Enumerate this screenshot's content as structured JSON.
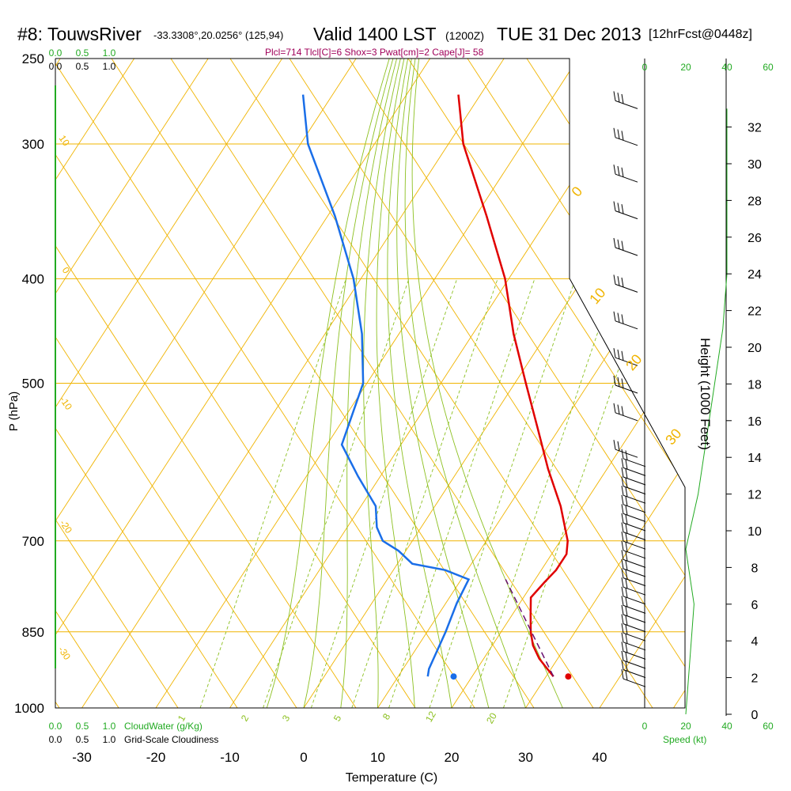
{
  "header": {
    "station": "#8: TouwsRiver",
    "coords": "-33.3308°,20.0256° (125,94)",
    "valid": "Valid 1400 LST",
    "zulu": "(1200Z)",
    "date": "TUE 31 Dec 2013",
    "forecast": "[12hrFcst@0448z]",
    "params": "Plcl=714 Tlcl[C]=6 Shox=3 Pwat[cm]=2 Cape[J]= 58"
  },
  "colors": {
    "isotherm": "#f0b400",
    "dry_adiabat": "#f0b400",
    "moist_adiabat": "#8cc020",
    "mixing_ratio": "#8cc020",
    "temperature": "#e00000",
    "dewpoint": "#1a6ee8",
    "parcel": "#6a1070",
    "cloud": "#22aa22"
  },
  "chart_data": {
    "type": "skew-t",
    "xlabel": "Temperature (C)",
    "ylabel": "P (hPa)",
    "right_axis_label": "Height (1000 Feet)",
    "temperature_ticks": [
      -30,
      -20,
      -10,
      0,
      10,
      20,
      30,
      40
    ],
    "pressure_ticks": [
      250,
      300,
      400,
      500,
      700,
      850,
      1000
    ],
    "height_ticks": [
      0,
      2,
      4,
      6,
      8,
      10,
      12,
      14,
      16,
      18,
      20,
      22,
      24,
      26,
      28,
      30,
      32
    ],
    "speed_ticks": [
      0,
      20,
      40,
      60
    ],
    "speed_label": "Speed (kt)",
    "cloudwater_ticks": [
      "0.0",
      "0.5",
      "1.0"
    ],
    "cloudwater_label": "CloudWater (g/Kg)",
    "cloudiness_ticks": [
      "0.0",
      "0.5",
      "1.0"
    ],
    "cloudiness_label": "Grid-Scale Cloudiness",
    "dry_adiabat_labels": [
      "0",
      "10",
      "20",
      "30"
    ],
    "left_adiabat_labels": [
      "10",
      "0",
      "-10",
      "-20",
      "-30"
    ],
    "mixing_ratio_labels": [
      "1",
      "2",
      "3",
      "5",
      "8",
      "12",
      "20"
    ],
    "temperature_profile": [
      {
        "p": 935,
        "t": 31.0
      },
      {
        "p": 920,
        "t": 29.5
      },
      {
        "p": 900,
        "t": 27.5
      },
      {
        "p": 875,
        "t": 25.5
      },
      {
        "p": 850,
        "t": 24.0
      },
      {
        "p": 820,
        "t": 22.5
      },
      {
        "p": 790,
        "t": 21.0
      },
      {
        "p": 765,
        "t": 21.5
      },
      {
        "p": 745,
        "t": 22.0
      },
      {
        "p": 720,
        "t": 22.0
      },
      {
        "p": 700,
        "t": 21.0
      },
      {
        "p": 650,
        "t": 17.0
      },
      {
        "p": 600,
        "t": 12.0
      },
      {
        "p": 550,
        "t": 7.0
      },
      {
        "p": 500,
        "t": 1.5
      },
      {
        "p": 450,
        "t": -4.5
      },
      {
        "p": 400,
        "t": -10.5
      },
      {
        "p": 350,
        "t": -18.5
      },
      {
        "p": 300,
        "t": -28.0
      },
      {
        "p": 270,
        "t": -33.0
      }
    ],
    "dewpoint_profile": [
      {
        "p": 935,
        "td": 14.0
      },
      {
        "p": 920,
        "td": 13.5
      },
      {
        "p": 850,
        "td": 12.5
      },
      {
        "p": 800,
        "td": 11.5
      },
      {
        "p": 760,
        "td": 11.0
      },
      {
        "p": 745,
        "td": 7.0
      },
      {
        "p": 735,
        "td": 2.0
      },
      {
        "p": 715,
        "td": -1.0
      },
      {
        "p": 700,
        "td": -4.0
      },
      {
        "p": 680,
        "td": -6.0
      },
      {
        "p": 650,
        "td": -8.0
      },
      {
        "p": 610,
        "td": -13.0
      },
      {
        "p": 570,
        "td": -18.0
      },
      {
        "p": 500,
        "td": -20.5
      },
      {
        "p": 450,
        "td": -25.0
      },
      {
        "p": 400,
        "td": -31.0
      },
      {
        "p": 350,
        "td": -39.0
      },
      {
        "p": 300,
        "td": -49.0
      },
      {
        "p": 270,
        "td": -54.0
      }
    ],
    "parcel_path": [
      {
        "p": 935,
        "t": 31.0
      },
      {
        "p": 760,
        "t": 16.0
      }
    ],
    "surface_temperature": {
      "p": 935,
      "t": 33.0
    },
    "surface_dewpoint": {
      "p": 935,
      "td": 17.5
    },
    "wind_barbs_heights_kft": [
      1.5,
      2,
      2.5,
      3,
      3.5,
      4,
      4.5,
      5,
      5.5,
      6,
      6.5,
      7,
      7.5,
      8,
      8.5,
      9,
      9.5,
      10,
      10.5,
      11,
      11.5,
      12,
      12.5,
      13,
      13.5,
      14,
      16,
      17.5,
      19,
      21,
      23,
      25,
      27,
      29,
      31,
      33
    ],
    "wind_speed_profile_kt": [
      {
        "h": 0,
        "s": 20
      },
      {
        "h": 3,
        "s": 22
      },
      {
        "h": 6,
        "s": 24
      },
      {
        "h": 9,
        "s": 20
      },
      {
        "h": 12,
        "s": 26
      },
      {
        "h": 15,
        "s": 30
      },
      {
        "h": 18,
        "s": 34
      },
      {
        "h": 21,
        "s": 38
      },
      {
        "h": 24,
        "s": 40
      },
      {
        "h": 27,
        "s": 40
      },
      {
        "h": 31,
        "s": 40
      },
      {
        "h": 33,
        "s": 40
      }
    ]
  }
}
